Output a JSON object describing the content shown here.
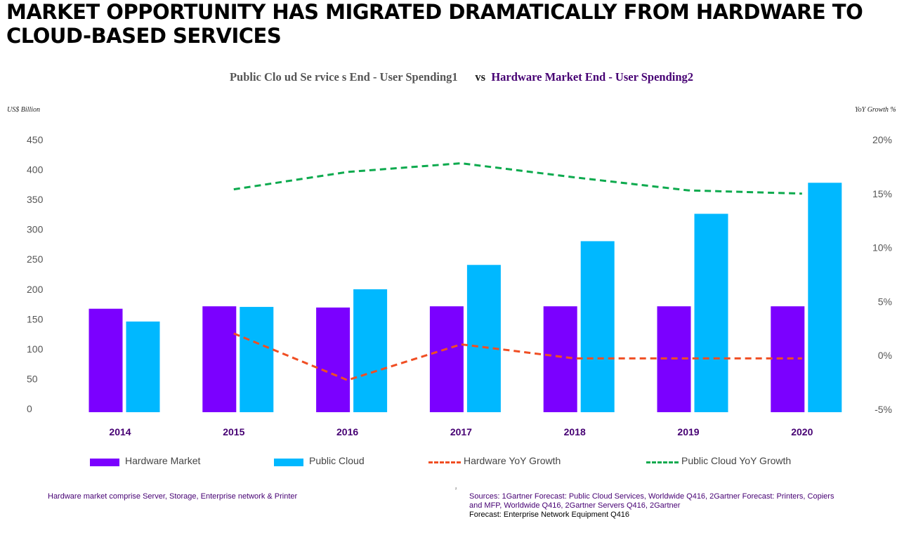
{
  "title": "MARKET OPPORTUNITY HAS MIGRATED DRAMATICALLY FROM HARDWARE TO CLOUD-BASED SERVICES",
  "subtitle": {
    "left": "Public Clo ud Se rvice s End - User Spending1",
    "vs": "vs",
    "right": "Hardware Market End - User Spending2"
  },
  "left_axis_unit": "US$ Billion",
  "right_axis_unit": "YoY Growth %",
  "footnote": "Hardware market comprise Server, Storage, Enterprise network & Printer",
  "sources": {
    "text": "Sources: 1Gartner Forecast: Public Cloud Services, Worldwide Q416, 2Gartner Forecast: Printers, Copiers and MFP, Worldwide Q416, 2Gartner Servers Q416, 2Gartner",
    "last_line": "Forecast: Enterprise Network Equipment Q416",
    "mark": "²"
  },
  "colors": {
    "hardware": "#7B00FF",
    "cloud": "#00B8FF",
    "hardware_growth": "#F04E23",
    "cloud_growth": "#0DAA4E",
    "category_label": "#460073"
  },
  "legend": [
    {
      "label": "Hardware Market",
      "type": "bar",
      "color": "#7B00FF"
    },
    {
      "label": "Public Cloud",
      "type": "bar",
      "color": "#00B8FF"
    },
    {
      "label": "Hardware YoY Growth",
      "type": "dash",
      "color": "#F04E23"
    },
    {
      "label": "Public Cloud YoY Growth",
      "type": "dash",
      "color": "#0DAA4E"
    }
  ],
  "chart_data": {
    "type": "bar",
    "categories": [
      "2014",
      "2015",
      "2016",
      "2017",
      "2018",
      "2019",
      "2020"
    ],
    "ylim": [
      0,
      450
    ],
    "y_ticks": [
      "450",
      "400",
      "350",
      "300",
      "250",
      "200",
      "150",
      "100",
      "50",
      "0"
    ],
    "y2lim": [
      -5,
      20
    ],
    "y2_ticks": [
      "20%",
      "15%",
      "10%",
      "5%",
      "0%",
      "-5%"
    ],
    "series": [
      {
        "name": "Hardware Market",
        "kind": "bar",
        "axis": "left",
        "values": [
          170,
          174,
          172,
          174,
          174,
          174,
          174
        ]
      },
      {
        "name": "Public Cloud",
        "kind": "bar",
        "axis": "left",
        "values": [
          149,
          173,
          202,
          242,
          281,
          326,
          377
        ]
      },
      {
        "name": "Hardware YoY Growth",
        "kind": "line",
        "axis": "right",
        "values": [
          null,
          2.0,
          -2.3,
          1.0,
          -0.3,
          -0.3,
          -0.3
        ]
      },
      {
        "name": "Public Cloud YoY Growth",
        "kind": "line",
        "axis": "right",
        "values": [
          null,
          15.3,
          16.9,
          17.7,
          16.4,
          15.2,
          14.9
        ]
      }
    ],
    "grid": false,
    "legend_position": "bottom"
  }
}
